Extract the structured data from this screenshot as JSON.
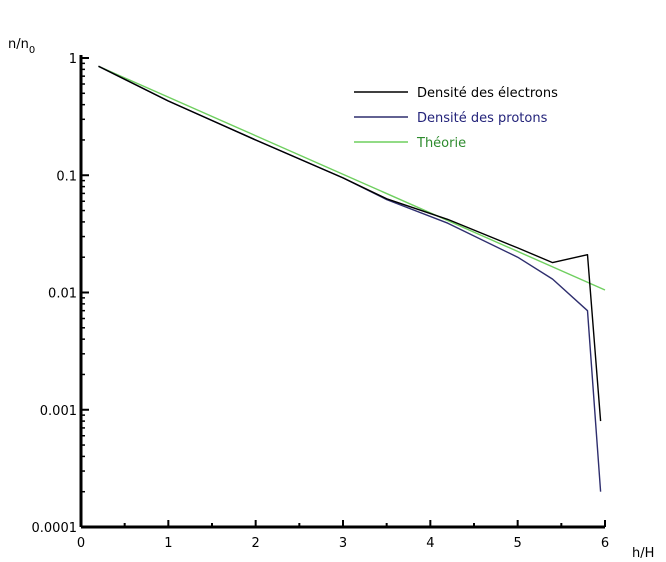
{
  "chart_data": {
    "type": "line",
    "title": "",
    "xlabel": "h/H",
    "ylabel_base": "n/n",
    "ylabel_sub": "0",
    "xlim": [
      0,
      6
    ],
    "ylim": [
      0.0001,
      1
    ],
    "yscale": "log",
    "grid": false,
    "legend_position": "top-right",
    "x_ticks": [
      0,
      1,
      2,
      3,
      4,
      5,
      6
    ],
    "x_tick_labels": [
      "0",
      "1",
      "2",
      "3",
      "4",
      "5",
      "6"
    ],
    "y_ticks": [
      1,
      0.1,
      0.01,
      0.001,
      0.0001
    ],
    "y_tick_labels": [
      "1",
      "0.1",
      "0.01",
      "0.001",
      "0.0001"
    ],
    "series": [
      {
        "name": "Densité des électrons",
        "color": "#000000",
        "text_color": "#000000",
        "x": [
          0.2,
          1.0,
          2.0,
          3.0,
          3.5,
          4.2,
          5.0,
          5.4,
          5.8,
          5.95
        ],
        "y": [
          0.85,
          0.43,
          0.2,
          0.095,
          0.063,
          0.042,
          0.024,
          0.018,
          0.021,
          0.0008
        ]
      },
      {
        "name": "Densité des protons",
        "color": "#2e2e6e",
        "text_color": "#23237a",
        "x": [
          0.2,
          1.0,
          2.0,
          3.0,
          3.5,
          4.2,
          5.0,
          5.4,
          5.8,
          5.95
        ],
        "y": [
          0.85,
          0.43,
          0.2,
          0.095,
          0.062,
          0.039,
          0.02,
          0.013,
          0.007,
          0.0002
        ]
      },
      {
        "name": "Théorie",
        "color": "#6fcf5f",
        "text_color": "#2e8b2e",
        "x": [
          0.2,
          6.0
        ],
        "y": [
          0.85,
          0.0105
        ]
      }
    ]
  }
}
